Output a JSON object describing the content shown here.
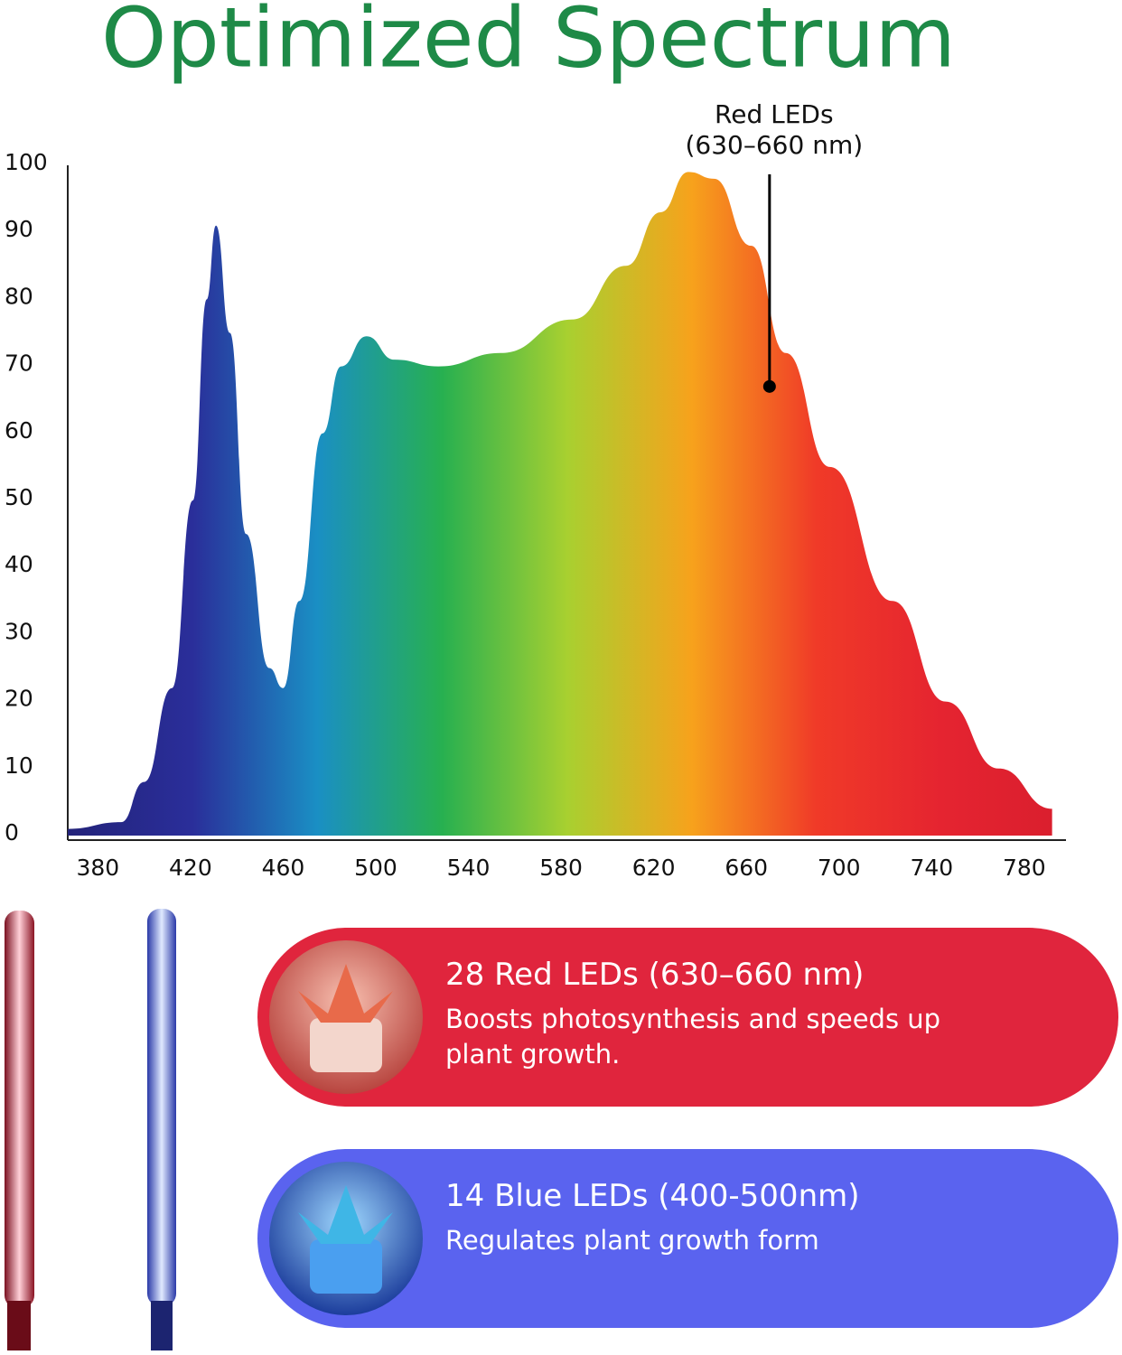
{
  "chart_data": {
    "type": "area",
    "title": "Optimized Spectrum",
    "x": [
      367,
      390,
      400,
      412,
      421,
      427,
      431,
      437,
      444,
      454,
      460,
      467,
      477,
      485,
      496,
      508,
      527,
      554,
      585,
      608,
      623,
      635,
      646,
      662,
      677,
      696,
      723,
      746,
      769,
      792
    ],
    "values": [
      1,
      2,
      8,
      22,
      50,
      80,
      91,
      75,
      45,
      25,
      22,
      35,
      60,
      70,
      74.5,
      71,
      70,
      72,
      77,
      85,
      93,
      99,
      98,
      88,
      72,
      55,
      35,
      20,
      10,
      4
    ],
    "colors": [
      "#23237a",
      "#2a2e9a",
      "#1a8fc4",
      "#27b050",
      "#a8d030",
      "#f7a21c",
      "#f03a28",
      "#e52430",
      "#d91e2e"
    ],
    "xlim": [
      367,
      798
    ],
    "ylim": [
      0,
      100
    ],
    "xticks": [
      380,
      420,
      460,
      500,
      540,
      580,
      620,
      660,
      700,
      740,
      780
    ],
    "yticks": [
      0,
      10,
      20,
      30,
      40,
      50,
      60,
      70,
      80,
      90,
      100
    ],
    "annotation": {
      "text": [
        "Red LEDs",
        "(630–660 nm)"
      ],
      "x": 670,
      "y": 67
    }
  },
  "cards": [
    {
      "title": "28 Red LEDs (630–660 nm)",
      "text": "Boosts photosynthesis and speeds up plant growth."
    },
    {
      "title": "14 Blue LEDs (400-500nm)",
      "text": "Regulates plant growth form"
    }
  ]
}
